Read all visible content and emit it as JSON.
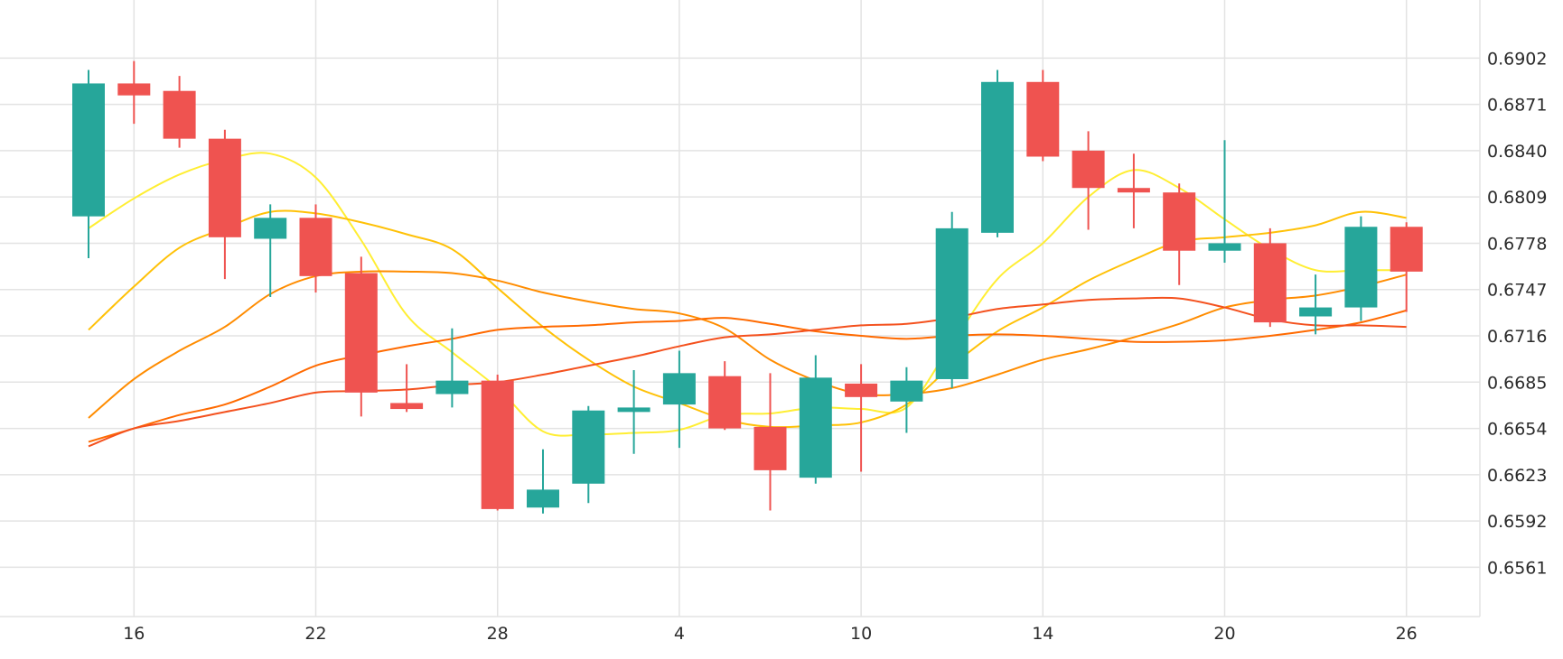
{
  "chart_data": {
    "type": "candlestick",
    "x_tick_labels": [
      "16",
      "22",
      "28",
      "4",
      "10",
      "14",
      "20",
      "26"
    ],
    "y_tick_labels": [
      "0.6902",
      "0.6871",
      "0.6840",
      "0.6809",
      "0.6778",
      "0.6747",
      "0.6716",
      "0.6685",
      "0.6654",
      "0.6623",
      "0.6592",
      "0.6561"
    ],
    "ylim": [
      0.6528,
      0.693
    ],
    "grid": true,
    "colors": {
      "up": "#26a69a",
      "down": "#ef5350",
      "grid": "#e3e3e3"
    },
    "candles": [
      {
        "o": 0.6796,
        "h": 0.6894,
        "l": 0.6768,
        "c": 0.6885
      },
      {
        "o": 0.6885,
        "h": 0.69,
        "l": 0.6858,
        "c": 0.6877
      },
      {
        "o": 0.688,
        "h": 0.689,
        "l": 0.6842,
        "c": 0.6848
      },
      {
        "o": 0.6848,
        "h": 0.6854,
        "l": 0.6754,
        "c": 0.6782
      },
      {
        "o": 0.6781,
        "h": 0.6804,
        "l": 0.6742,
        "c": 0.6795
      },
      {
        "o": 0.6795,
        "h": 0.6804,
        "l": 0.6745,
        "c": 0.6756
      },
      {
        "o": 0.6758,
        "h": 0.6769,
        "l": 0.6662,
        "c": 0.6678
      },
      {
        "o": 0.6671,
        "h": 0.6697,
        "l": 0.6665,
        "c": 0.6667
      },
      {
        "o": 0.6677,
        "h": 0.6721,
        "l": 0.6668,
        "c": 0.6686
      },
      {
        "o": 0.6686,
        "h": 0.669,
        "l": 0.6599,
        "c": 0.66
      },
      {
        "o": 0.6601,
        "h": 0.664,
        "l": 0.6597,
        "c": 0.6613
      },
      {
        "o": 0.6617,
        "h": 0.6669,
        "l": 0.6604,
        "c": 0.6666
      },
      {
        "o": 0.6665,
        "h": 0.6693,
        "l": 0.6637,
        "c": 0.6668
      },
      {
        "o": 0.667,
        "h": 0.6706,
        "l": 0.6641,
        "c": 0.6691
      },
      {
        "o": 0.6689,
        "h": 0.6699,
        "l": 0.6653,
        "c": 0.6654
      },
      {
        "o": 0.6655,
        "h": 0.6691,
        "l": 0.6599,
        "c": 0.6626
      },
      {
        "o": 0.6621,
        "h": 0.6703,
        "l": 0.6617,
        "c": 0.6688
      },
      {
        "o": 0.6684,
        "h": 0.6697,
        "l": 0.6625,
        "c": 0.6675
      },
      {
        "o": 0.6672,
        "h": 0.6695,
        "l": 0.6651,
        "c": 0.6686
      },
      {
        "o": 0.6687,
        "h": 0.6799,
        "l": 0.6681,
        "c": 0.6788
      },
      {
        "o": 0.6785,
        "h": 0.6894,
        "l": 0.6782,
        "c": 0.6886
      },
      {
        "o": 0.6886,
        "h": 0.6894,
        "l": 0.6833,
        "c": 0.6836
      },
      {
        "o": 0.684,
        "h": 0.6853,
        "l": 0.6787,
        "c": 0.6815
      },
      {
        "o": 0.6815,
        "h": 0.6838,
        "l": 0.6788,
        "c": 0.6812
      },
      {
        "o": 0.6812,
        "h": 0.6818,
        "l": 0.675,
        "c": 0.6773
      },
      {
        "o": 0.6773,
        "h": 0.6847,
        "l": 0.6765,
        "c": 0.6778
      },
      {
        "o": 0.6778,
        "h": 0.6788,
        "l": 0.6722,
        "c": 0.6725
      },
      {
        "o": 0.6729,
        "h": 0.6757,
        "l": 0.6717,
        "c": 0.6735
      },
      {
        "o": 0.6735,
        "h": 0.6796,
        "l": 0.6726,
        "c": 0.6789
      },
      {
        "o": 0.6789,
        "h": 0.6792,
        "l": 0.6732,
        "c": 0.6759
      }
    ],
    "series": [
      {
        "color": "#ffee33",
        "values": [
          0.6788,
          0.6808,
          0.6824,
          0.6834,
          0.6838,
          0.6822,
          0.678,
          0.673,
          0.6705,
          0.6681,
          0.6652,
          0.665,
          0.6651,
          0.6653,
          0.6663,
          0.6664,
          0.6668,
          0.6667,
          0.6668,
          0.6711,
          0.6754,
          0.6778,
          0.6809,
          0.6827,
          0.6815,
          0.6794,
          0.6774,
          0.676,
          0.676,
          0.676
        ]
      },
      {
        "color": "#ffc107",
        "values": [
          0.672,
          0.6749,
          0.6775,
          0.6788,
          0.6799,
          0.6798,
          0.6792,
          0.6784,
          0.6774,
          0.6748,
          0.6722,
          0.67,
          0.6682,
          0.6671,
          0.666,
          0.6655,
          0.6656,
          0.6658,
          0.667,
          0.6696,
          0.6719,
          0.6735,
          0.6753,
          0.6767,
          0.6779,
          0.6782,
          0.6785,
          0.679,
          0.6799,
          0.6795
        ]
      },
      {
        "color": "#ff8c00",
        "values": [
          0.6661,
          0.6687,
          0.6706,
          0.6722,
          0.6744,
          0.6756,
          0.6759,
          0.6759,
          0.6758,
          0.6753,
          0.6745,
          0.6739,
          0.6734,
          0.6731,
          0.6721,
          0.67,
          0.6686,
          0.6677,
          0.6677,
          0.6681,
          0.669,
          0.67,
          0.6707,
          0.6715,
          0.6724,
          0.6735,
          0.674,
          0.6743,
          0.6749,
          0.6757
        ]
      },
      {
        "color": "#ff6a00",
        "values": [
          0.6645,
          0.6654,
          0.6663,
          0.667,
          0.6682,
          0.6696,
          0.6703,
          0.6709,
          0.6714,
          0.672,
          0.6722,
          0.6723,
          0.6725,
          0.6726,
          0.6728,
          0.6724,
          0.6719,
          0.6716,
          0.6714,
          0.6716,
          0.6717,
          0.6716,
          0.6714,
          0.6712,
          0.6712,
          0.6713,
          0.6716,
          0.672,
          0.6725,
          0.6733
        ]
      },
      {
        "color": "#f4511e",
        "values": [
          0.6642,
          0.6654,
          0.6659,
          0.6665,
          0.6671,
          0.6678,
          0.6679,
          0.668,
          0.6683,
          0.6685,
          0.669,
          0.6696,
          0.6702,
          0.6709,
          0.6715,
          0.6717,
          0.672,
          0.6723,
          0.6724,
          0.6728,
          0.6734,
          0.6737,
          0.674,
          0.6741,
          0.6741,
          0.6735,
          0.6727,
          0.6723,
          0.6723,
          0.6722
        ]
      }
    ]
  }
}
